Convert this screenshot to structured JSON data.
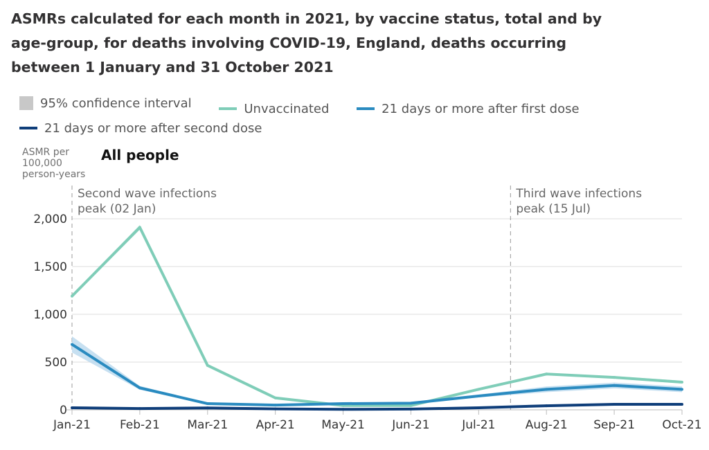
{
  "title": "ASMRs calculated for each month in 2021, by vaccine status, total and by age-group, for deaths involving COVID-19, England, deaths occurring between 1 January and 31 October 2021",
  "legend": [
    {
      "label": "95% confidence interval",
      "color": "#c8c8c8",
      "kind": "box"
    },
    {
      "label": "Unvaccinated",
      "color": "#7fcdb8",
      "kind": "line"
    },
    {
      "label": "21 days or more after first dose",
      "color": "#2a8bc0",
      "kind": "line"
    },
    {
      "label": "21 days or more after second dose",
      "color": "#0f3e7a",
      "kind": "line"
    }
  ],
  "chart_data": {
    "type": "line",
    "title": "All people",
    "ylabel": "ASMR per 100,000 person-years",
    "xlabel": "",
    "x": [
      "Jan-21",
      "Feb-21",
      "Mar-21",
      "Apr-21",
      "May-21",
      "Jun-21",
      "Jul-21",
      "Aug-21",
      "Sep-21",
      "Oct-21"
    ],
    "ylim": [
      0,
      2000
    ],
    "yticks": [
      {
        "v": 0,
        "label": "0"
      },
      {
        "v": 500,
        "label": "500"
      },
      {
        "v": 1000,
        "label": "1,000"
      },
      {
        "v": 1500,
        "label": "1,500"
      },
      {
        "v": 2000,
        "label": "2,000"
      }
    ],
    "grid": true,
    "series": [
      {
        "name": "Unvaccinated",
        "color": "#7fcdb8",
        "band": "#bfe6db",
        "values": [
          1190,
          1910,
          465,
          125,
          45,
          45,
          215,
          375,
          340,
          290
        ],
        "ci": [
          15,
          25,
          10,
          8,
          6,
          6,
          10,
          12,
          12,
          15
        ]
      },
      {
        "name": "21 days or more after first dose",
        "color": "#2a8bc0",
        "band": "#b9d8ee",
        "values": [
          685,
          230,
          65,
          50,
          65,
          70,
          145,
          215,
          255,
          215
        ],
        "ci": [
          85,
          20,
          8,
          6,
          8,
          8,
          15,
          30,
          30,
          30
        ]
      },
      {
        "name": "21 days or more after second dose",
        "color": "#0f3e7a",
        "band": "#b0bfd8",
        "values": [
          22,
          14,
          20,
          10,
          5,
          8,
          22,
          43,
          58,
          58
        ],
        "ci": [
          3,
          2,
          2,
          1,
          1,
          1,
          2,
          3,
          3,
          3
        ]
      }
    ],
    "annotations": [
      {
        "x": "Jan-21",
        "offset": 0,
        "line1": "Second wave infections",
        "line2": "peak (02 Jan)"
      },
      {
        "x": "Jul-21",
        "offset": 0.47,
        "line1": "Third wave infections",
        "line2": "peak (15 Jul)"
      }
    ]
  }
}
